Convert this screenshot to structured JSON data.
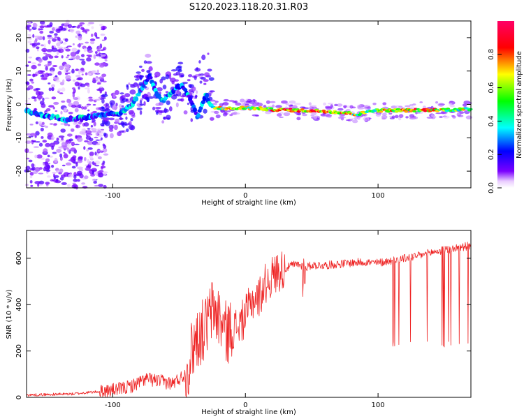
{
  "title": "S120.2023.118.20.31.R03",
  "chart_data": [
    {
      "type": "heatmap",
      "xlabel": "Height of straight line (km)",
      "ylabel": "Frequency (Hz)",
      "xlim": [
        -165,
        170
      ],
      "ylim": [
        -25,
        25
      ],
      "x_ticks": [
        -100,
        0,
        100
      ],
      "y_ticks": [
        -20,
        -10,
        0,
        10,
        20
      ],
      "x_tick_labels": [
        "-100",
        "0",
        "100"
      ],
      "y_tick_labels": [
        "-20",
        "-10",
        "0",
        "10",
        "20"
      ],
      "grid": false,
      "colorbar": {
        "label": "Normalized spectral amplitude",
        "range": [
          0,
          1
        ],
        "ticks": [
          "0.0",
          "0.2",
          "0.4",
          "0.6",
          "0.8"
        ],
        "colors": [
          "#ffffff",
          "#7a00ff",
          "#0000ff",
          "#00ffff",
          "#00ff00",
          "#ffff00",
          "#ff0000",
          "#ff00aa"
        ]
      },
      "ridge": [
        {
          "x": -165,
          "y": -2.0
        },
        {
          "x": -150,
          "y": -3.5
        },
        {
          "x": -135,
          "y": -4.5
        },
        {
          "x": -120,
          "y": -4.0
        },
        {
          "x": -105,
          "y": -3.0
        },
        {
          "x": -95,
          "y": -3.0
        },
        {
          "x": -85,
          "y": 0.0
        },
        {
          "x": -78,
          "y": 5.0
        },
        {
          "x": -72,
          "y": 8.5
        },
        {
          "x": -67,
          "y": 3.0
        },
        {
          "x": -62,
          "y": 1.0
        },
        {
          "x": -55,
          "y": 4.0
        },
        {
          "x": -48,
          "y": 6.0
        },
        {
          "x": -42,
          "y": 2.0
        },
        {
          "x": -36,
          "y": -4.0
        },
        {
          "x": -30,
          "y": 3.0
        },
        {
          "x": -25,
          "y": -1.0
        },
        {
          "x": -10,
          "y": -1.3
        },
        {
          "x": 0,
          "y": -1.0
        },
        {
          "x": 20,
          "y": -1.5
        },
        {
          "x": 40,
          "y": -1.8
        },
        {
          "x": 60,
          "y": -2.0
        },
        {
          "x": 75,
          "y": -2.5
        },
        {
          "x": 85,
          "y": -3.0
        },
        {
          "x": 95,
          "y": -1.8
        },
        {
          "x": 120,
          "y": -1.8
        },
        {
          "x": 150,
          "y": -1.6
        },
        {
          "x": 170,
          "y": -1.5
        }
      ]
    },
    {
      "type": "line",
      "xlabel": "Height of straight line (km)",
      "ylabel": "SNR (10 * v/v)",
      "xlim": [
        -165,
        170
      ],
      "ylim": [
        0,
        720
      ],
      "x_ticks": [
        -100,
        0,
        100
      ],
      "y_ticks": [
        0,
        200,
        400,
        600
      ],
      "x_tick_labels": [
        "-100",
        "0",
        "100"
      ],
      "y_tick_labels": [
        "0",
        "200",
        "400",
        "600"
      ],
      "grid": false,
      "color": "#ee2222",
      "series": [
        {
          "x": [
            -165,
            -150,
            -130,
            -110,
            -95,
            -85,
            -75,
            -65,
            -55,
            -45,
            -38,
            -30,
            -25,
            -20,
            -15,
            -10,
            -5,
            0,
            5,
            10,
            15,
            20,
            25,
            30,
            35,
            40,
            45,
            50,
            60,
            70,
            80,
            90,
            95,
            100,
            105,
            110,
            120,
            130,
            140,
            150,
            160,
            165,
            170
          ],
          "y": [
            10,
            12,
            15,
            25,
            35,
            50,
            80,
            70,
            60,
            100,
            250,
            300,
            380,
            350,
            280,
            290,
            310,
            350,
            420,
            430,
            490,
            520,
            545,
            555,
            570,
            575,
            560,
            570,
            570,
            575,
            580,
            585,
            580,
            580,
            585,
            590,
            600,
            610,
            625,
            635,
            645,
            650,
            655
          ]
        }
      ],
      "dropouts": {
        "x_range": [
          110,
          170
        ],
        "low_value": 215
      }
    }
  ]
}
